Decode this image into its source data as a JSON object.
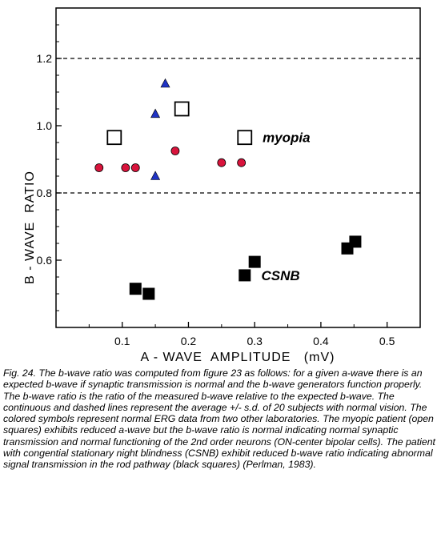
{
  "chart_data": {
    "type": "scatter",
    "xlabel": "A - WAVE  AMPLITUDE   (mV)",
    "ylabel": "B - WAVE  RATIO",
    "xlim": [
      0,
      0.55
    ],
    "ylim": [
      0.4,
      1.35
    ],
    "xticks": [
      "0.1",
      "0.2",
      "0.3",
      "0.4",
      "0.5"
    ],
    "yticks": [
      "0.6",
      "0.8",
      "1.0",
      "1.2"
    ],
    "xtick_values": [
      0.1,
      0.2,
      0.3,
      0.4,
      0.5
    ],
    "ytick_values": [
      0.6,
      0.8,
      1.0,
      1.2
    ],
    "reference_lines": [
      1.2,
      0.8
    ],
    "grid": false,
    "series": [
      {
        "marker": "circle",
        "color": "#d8143c",
        "x": [
          0.065,
          0.105,
          0.12,
          0.18,
          0.25,
          0.28
        ],
        "y": [
          0.875,
          0.875,
          0.875,
          0.925,
          0.89,
          0.89
        ]
      },
      {
        "marker": "triangle",
        "color": "#1f33c4",
        "x": [
          0.15,
          0.15,
          0.165
        ],
        "y": [
          0.85,
          1.035,
          1.125
        ]
      },
      {
        "marker": "open-square",
        "color": "#000000",
        "x": [
          0.088,
          0.19,
          0.285
        ],
        "y": [
          0.965,
          1.05,
          0.965
        ]
      },
      {
        "marker": "filled-square",
        "color": "#000000",
        "x": [
          0.12,
          0.14,
          0.285,
          0.3,
          0.44,
          0.452
        ],
        "y": [
          0.515,
          0.5,
          0.555,
          0.595,
          0.635,
          0.655
        ]
      }
    ],
    "annotations": [
      {
        "text": "myopia",
        "x": 0.312,
        "y": 0.965
      },
      {
        "text": "CSNB",
        "x": 0.31,
        "y": 0.555
      }
    ]
  },
  "caption": "Fig. 24. The b-wave ratio was computed from figure 23 as follows: for a given a-wave there is an expected b-wave if synaptic transmission is normal and the b-wave generators function properly. The b-wave ratio is the ratio of the measured b-wave relative to the expected b-wave. The continuous and dashed lines represent the average +/- s.d. of 20 subjects with normal vision. The colored symbols represent normal ERG data from two other laboratories. The myopic patient (open squares) exhibits reduced a-wave but the b-wave ratio is normal indicating normal synaptic transmission and normal functioning of the 2nd order neurons (ON-center bipolar cells). The patient with congential stationary night blindness (CSNB) exhibit reduced b-wave ratio indicating abnormal signal transmission in the rod pathway (black squares) (Perlman, 1983)."
}
